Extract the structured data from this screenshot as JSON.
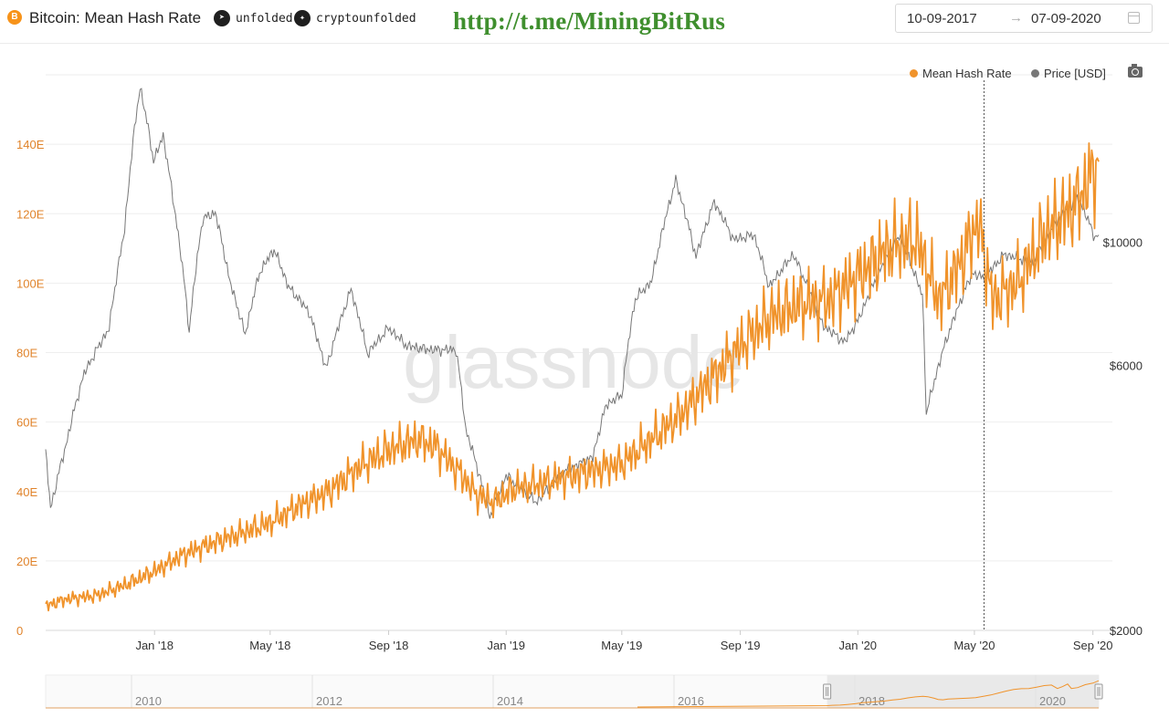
{
  "header": {
    "title": "Bitcoin: Mean Hash Rate",
    "btc_glyph": "B",
    "telegram_label": "unfolded",
    "twitter_label": "cryptounfolded",
    "promo_link": "http://t.me/MiningBitRus",
    "date_from": "10-09-2017",
    "date_arrow": "→",
    "date_to": "07-09-2020",
    "icons": [
      "bitcoin-logo-icon",
      "telegram-icon",
      "twitter-icon",
      "calendar-icon",
      "camera-icon"
    ]
  },
  "legend": [
    {
      "label": "Mean Hash Rate",
      "color": "#f0932b"
    },
    {
      "label": "Price [USD]",
      "color": "#777777"
    }
  ],
  "watermark": "glassnode",
  "navigator": {
    "year_labels": [
      "2010",
      "2012",
      "2014",
      "2016",
      "2018",
      "2020"
    ],
    "selection": [
      "2017-09-10",
      "2020-09-07"
    ]
  },
  "chart_data": {
    "type": "line",
    "title": "Bitcoin: Mean Hash Rate",
    "x_range": [
      "2017-09-10",
      "2020-09-07"
    ],
    "x_ticks": [
      {
        "date": "2018-01-01",
        "label": "Jan '18"
      },
      {
        "date": "2018-05-01",
        "label": "May '18"
      },
      {
        "date": "2018-09-01",
        "label": "Sep '18"
      },
      {
        "date": "2019-01-01",
        "label": "Jan '19"
      },
      {
        "date": "2019-05-01",
        "label": "May '19"
      },
      {
        "date": "2019-09-01",
        "label": "Sep '19"
      },
      {
        "date": "2020-01-01",
        "label": "Jan '20"
      },
      {
        "date": "2020-05-01",
        "label": "May '20"
      },
      {
        "date": "2020-09-01",
        "label": "Sep '20"
      }
    ],
    "y_left": {
      "unit": "E",
      "range": [
        0,
        160
      ],
      "ticks": [
        0,
        20,
        40,
        60,
        80,
        100,
        120,
        140
      ],
      "tick_labels": [
        "0",
        "20E",
        "40E",
        "60E",
        "80E",
        "100E",
        "120E",
        "140E"
      ],
      "color": "#e0832a"
    },
    "y_right": {
      "scale": "log",
      "range": [
        2000,
        20000
      ],
      "ticks": [
        2000,
        6000,
        10000
      ],
      "tick_labels": [
        "$2000",
        "$6000",
        "$10000"
      ],
      "color": "#333333"
    },
    "grid": true,
    "legend_position": "top-right",
    "marker_line_date": "2020-05-11",
    "series": [
      {
        "name": "Mean Hash Rate",
        "axis": "left",
        "color": "#f0932b",
        "points": [
          [
            "2017-09-10",
            7
          ],
          [
            "2017-10-01",
            9
          ],
          [
            "2017-11-01",
            10
          ],
          [
            "2017-12-01",
            13
          ],
          [
            "2018-01-01",
            17
          ],
          [
            "2018-02-01",
            22
          ],
          [
            "2018-03-01",
            25
          ],
          [
            "2018-04-01",
            28
          ],
          [
            "2018-05-01",
            31
          ],
          [
            "2018-06-01",
            36
          ],
          [
            "2018-07-01",
            40
          ],
          [
            "2018-08-01",
            47
          ],
          [
            "2018-09-01",
            52
          ],
          [
            "2018-10-01",
            55
          ],
          [
            "2018-10-20",
            53
          ],
          [
            "2018-11-15",
            45
          ],
          [
            "2018-12-01",
            39
          ],
          [
            "2018-12-20",
            37
          ],
          [
            "2019-01-10",
            41
          ],
          [
            "2019-02-01",
            42
          ],
          [
            "2019-03-01",
            44
          ],
          [
            "2019-04-01",
            46
          ],
          [
            "2019-05-01",
            48
          ],
          [
            "2019-06-01",
            55
          ],
          [
            "2019-07-01",
            62
          ],
          [
            "2019-08-01",
            72
          ],
          [
            "2019-09-01",
            82
          ],
          [
            "2019-10-01",
            90
          ],
          [
            "2019-11-01",
            94
          ],
          [
            "2019-12-01",
            95
          ],
          [
            "2020-01-01",
            102
          ],
          [
            "2020-02-01",
            110
          ],
          [
            "2020-03-01",
            113
          ],
          [
            "2020-03-25",
            95
          ],
          [
            "2020-04-15",
            105
          ],
          [
            "2020-05-05",
            118
          ],
          [
            "2020-05-20",
            95
          ],
          [
            "2020-06-15",
            100
          ],
          [
            "2020-07-15",
            115
          ],
          [
            "2020-08-15",
            123
          ],
          [
            "2020-09-07",
            135
          ]
        ]
      },
      {
        "name": "Price [USD]",
        "axis": "right",
        "color": "#777777",
        "points": [
          [
            "2017-09-10",
            4200
          ],
          [
            "2017-09-15",
            3300
          ],
          [
            "2017-10-01",
            4300
          ],
          [
            "2017-10-20",
            5800
          ],
          [
            "2017-11-15",
            7000
          ],
          [
            "2017-12-01",
            10500
          ],
          [
            "2017-12-17",
            19000
          ],
          [
            "2017-12-31",
            14000
          ],
          [
            "2018-01-10",
            15500
          ],
          [
            "2018-01-20",
            12000
          ],
          [
            "2018-02-06",
            6900
          ],
          [
            "2018-02-20",
            11000
          ],
          [
            "2018-03-05",
            11300
          ],
          [
            "2018-03-20",
            8500
          ],
          [
            "2018-04-05",
            6800
          ],
          [
            "2018-04-20",
            8800
          ],
          [
            "2018-05-05",
            9700
          ],
          [
            "2018-05-20",
            8300
          ],
          [
            "2018-06-10",
            7500
          ],
          [
            "2018-06-28",
            5900
          ],
          [
            "2018-07-24",
            8200
          ],
          [
            "2018-08-10",
            6300
          ],
          [
            "2018-09-01",
            7000
          ],
          [
            "2018-09-20",
            6500
          ],
          [
            "2018-10-15",
            6400
          ],
          [
            "2018-11-10",
            6400
          ],
          [
            "2018-11-20",
            4600
          ],
          [
            "2018-12-15",
            3200
          ],
          [
            "2019-01-01",
            3800
          ],
          [
            "2019-02-01",
            3400
          ],
          [
            "2019-03-01",
            3850
          ],
          [
            "2019-04-01",
            4100
          ],
          [
            "2019-04-15",
            5100
          ],
          [
            "2019-05-01",
            5300
          ],
          [
            "2019-05-15",
            7900
          ],
          [
            "2019-06-01",
            8500
          ],
          [
            "2019-06-26",
            12900
          ],
          [
            "2019-07-17",
            9400
          ],
          [
            "2019-08-05",
            11800
          ],
          [
            "2019-08-25",
            10100
          ],
          [
            "2019-09-15",
            10300
          ],
          [
            "2019-10-01",
            8300
          ],
          [
            "2019-10-26",
            9500
          ],
          [
            "2019-11-25",
            7100
          ],
          [
            "2019-12-18",
            6600
          ],
          [
            "2020-01-01",
            7200
          ],
          [
            "2020-01-20",
            8600
          ],
          [
            "2020-02-13",
            10300
          ],
          [
            "2020-03-08",
            8000
          ],
          [
            "2020-03-12",
            4900
          ],
          [
            "2020-04-01",
            6600
          ],
          [
            "2020-04-29",
            8800
          ],
          [
            "2020-05-11",
            8600
          ],
          [
            "2020-06-01",
            9500
          ],
          [
            "2020-07-01",
            9200
          ],
          [
            "2020-07-27",
            11000
          ],
          [
            "2020-08-17",
            12000
          ],
          [
            "2020-09-03",
            10200
          ],
          [
            "2020-09-07",
            10300
          ]
        ]
      }
    ]
  }
}
